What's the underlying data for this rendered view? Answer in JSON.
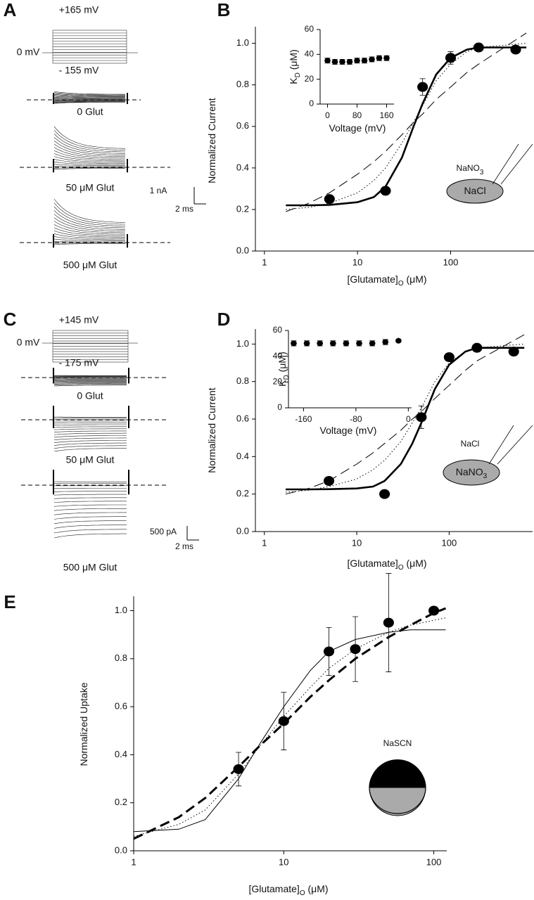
{
  "panel_labels": [
    "A",
    "B",
    "C",
    "D",
    "E"
  ],
  "trace_panels": [
    {
      "top_voltage": "+165 mV",
      "zero": "0 mV",
      "bottom_voltage": "- 155 mV",
      "conditions": [
        "0 Glut",
        "50 μM Glut",
        "500 μM Glut"
      ],
      "scale_y": "1 nA",
      "scale_x": "2 ms"
    },
    {
      "top_voltage": "+145 mV",
      "zero": "0 mV",
      "bottom_voltage": "- 175 mV",
      "conditions": [
        "0 Glut",
        "50 μM Glut",
        "500 μM Glut"
      ],
      "scale_y": "500 pA",
      "scale_x": "2 ms"
    }
  ],
  "chart_data": [
    {
      "type": "scatter",
      "xscale": "log",
      "xlim": [
        0.8,
        800
      ],
      "xticks": [
        1,
        10,
        100
      ],
      "ylim": [
        0,
        1.08
      ],
      "yticks": [
        {
          "value": 0,
          "label": "0.0"
        },
        0.2,
        0.4,
        0.6,
        0.8,
        {
          "value": 1,
          "label": "1.0"
        }
      ],
      "xlabel": [
        "[Glutamate]",
        "O",
        " (μM)"
      ],
      "ylabel": [
        "Normalized Current"
      ],
      "series": [
        {
          "type": "line",
          "style": "solid",
          "width": 2.6,
          "color": "#000",
          "x": [
            1.7,
            3,
            5,
            10,
            15,
            20,
            30,
            40,
            50,
            70,
            100,
            150,
            200,
            650
          ],
          "values": [
            0.22,
            0.22,
            0.222,
            0.235,
            0.26,
            0.31,
            0.45,
            0.6,
            0.71,
            0.85,
            0.93,
            0.97,
            0.98,
            0.98
          ]
        },
        {
          "type": "line",
          "style": "dashed",
          "width": 1,
          "color": "#000",
          "x": [
            1.7,
            3,
            5,
            10,
            15,
            20,
            30,
            40,
            50,
            70,
            100,
            150,
            200,
            650
          ],
          "values": [
            0.19,
            0.23,
            0.28,
            0.37,
            0.43,
            0.48,
            0.56,
            0.62,
            0.66,
            0.73,
            0.79,
            0.86,
            0.9,
            1.05
          ]
        },
        {
          "type": "line",
          "style": "dotted",
          "width": 1,
          "color": "#000",
          "x": [
            1.7,
            3,
            5,
            10,
            15,
            20,
            30,
            40,
            50,
            70,
            100,
            150,
            200,
            650
          ],
          "values": [
            0.2,
            0.21,
            0.23,
            0.28,
            0.34,
            0.4,
            0.52,
            0.62,
            0.7,
            0.82,
            0.9,
            0.96,
            0.98,
            1.0
          ]
        },
        {
          "type": "scatter",
          "color": "#000",
          "x": [
            5,
            20,
            50,
            100,
            200,
            500
          ],
          "values": [
            0.25,
            0.29,
            0.79,
            0.93,
            0.98,
            0.97
          ],
          "error": [
            0.02,
            0.02,
            0.04,
            0.03,
            0.01,
            0.01
          ]
        }
      ],
      "annotation": {
        "outer": [
          "NaNO",
          "3"
        ],
        "inner": [
          "NaCl"
        ]
      }
    },
    {
      "type": "scatter",
      "xlim": [
        -20,
        180
      ],
      "xticks": [
        0,
        80,
        160
      ],
      "ylim": [
        0,
        60
      ],
      "yticks": [
        0,
        20,
        40,
        60
      ],
      "xlabel": [
        "Voltage (mV)"
      ],
      "ylabel": [
        "K",
        "D",
        " (μM)"
      ],
      "series": [
        {
          "type": "scatter",
          "color": "#000",
          "x": [
            0,
            20,
            40,
            60,
            80,
            100,
            120,
            140,
            160
          ],
          "values": [
            35,
            34,
            34,
            34,
            35,
            35,
            36,
            37,
            37
          ],
          "error": [
            2,
            2,
            2,
            2,
            2,
            2,
            2,
            2,
            2
          ]
        }
      ]
    },
    {
      "type": "scatter",
      "xscale": "log",
      "xlim": [
        0.8,
        800
      ],
      "xticks": [
        1,
        10,
        100
      ],
      "ylim": [
        0,
        1.08
      ],
      "yticks": [
        {
          "value": 0,
          "label": "0.0"
        },
        0.2,
        0.4,
        0.6,
        0.8,
        {
          "value": 1,
          "label": "1.0"
        }
      ],
      "xlabel": [
        "[Glutamate]",
        "O",
        " (μM)"
      ],
      "ylabel": [
        "Normalized Current"
      ],
      "series": [
        {
          "type": "line",
          "style": "solid",
          "width": 2.6,
          "color": "#000",
          "x": [
            1.7,
            3,
            5,
            10,
            15,
            20,
            30,
            40,
            50,
            70,
            100,
            150,
            200,
            650
          ],
          "values": [
            0.225,
            0.225,
            0.226,
            0.23,
            0.24,
            0.27,
            0.36,
            0.47,
            0.58,
            0.76,
            0.89,
            0.96,
            0.98,
            0.98
          ]
        },
        {
          "type": "line",
          "style": "dashed",
          "width": 1,
          "color": "#000",
          "x": [
            1.7,
            3,
            5,
            10,
            15,
            20,
            30,
            40,
            50,
            70,
            100,
            150,
            200,
            650
          ],
          "values": [
            0.2,
            0.23,
            0.27,
            0.36,
            0.42,
            0.47,
            0.54,
            0.6,
            0.64,
            0.71,
            0.78,
            0.86,
            0.91,
            1.05
          ]
        },
        {
          "type": "line",
          "style": "dotted",
          "width": 1,
          "color": "#000",
          "x": [
            1.7,
            3,
            5,
            10,
            15,
            20,
            30,
            40,
            50,
            70,
            100,
            150,
            200,
            650
          ],
          "values": [
            0.21,
            0.22,
            0.24,
            0.28,
            0.33,
            0.38,
            0.48,
            0.58,
            0.66,
            0.8,
            0.9,
            0.96,
            0.98,
            1.0
          ]
        },
        {
          "type": "scatter",
          "color": "#000",
          "x": [
            5,
            20,
            50,
            100,
            200,
            500
          ],
          "values": [
            0.27,
            0.2,
            0.61,
            0.93,
            0.98,
            0.96
          ],
          "error": [
            0.01,
            0.01,
            0.06,
            0.01,
            0.01,
            0.01
          ]
        }
      ],
      "annotation": {
        "outer": [
          "NaCl"
        ],
        "inner": [
          "NaNO",
          "3"
        ]
      }
    },
    {
      "type": "scatter",
      "xlim": [
        -183,
        5
      ],
      "xticks": [
        -160,
        -80,
        0
      ],
      "ylim": [
        0,
        60
      ],
      "yticks": [
        0,
        20,
        40,
        60
      ],
      "xlabel": [
        "Voltage (mV)"
      ],
      "ylabel": [
        "K",
        "D",
        " (μM)"
      ],
      "series": [
        {
          "type": "scatter",
          "color": "#000",
          "x": [
            -175,
            -155,
            -135,
            -115,
            -95,
            -75,
            -55,
            -35,
            -15
          ],
          "values": [
            50,
            50,
            50,
            50,
            50,
            50,
            50,
            51,
            52
          ],
          "error": [
            2,
            2,
            2,
            2,
            2,
            2,
            2,
            2,
            1
          ]
        }
      ]
    },
    {
      "type": "scatter",
      "xscale": "log",
      "xlim": [
        1,
        122
      ],
      "xticks": [
        1,
        10,
        100
      ],
      "ylim": [
        0,
        1.06
      ],
      "yticks": [
        {
          "value": 0,
          "label": "0.0"
        },
        0.2,
        0.4,
        0.6,
        0.8,
        {
          "value": 1,
          "label": "1.0"
        }
      ],
      "xlabel": [
        "[Glutamate]",
        "O",
        " (μM)"
      ],
      "ylabel": [
        "Normalized Uptake"
      ],
      "series": [
        {
          "type": "line",
          "style": "solid",
          "width": 1,
          "color": "#000",
          "x": [
            1,
            2,
            3,
            5,
            7,
            10,
            15,
            20,
            30,
            50,
            70,
            100,
            120
          ],
          "values": [
            0.08,
            0.09,
            0.13,
            0.3,
            0.45,
            0.6,
            0.75,
            0.83,
            0.88,
            0.91,
            0.92,
            0.92,
            0.92
          ]
        },
        {
          "type": "line",
          "style": "dashed",
          "width": 3,
          "color": "#000",
          "x": [
            1,
            2,
            3,
            5,
            7,
            10,
            15,
            20,
            30,
            50,
            70,
            100,
            120
          ],
          "values": [
            0.05,
            0.14,
            0.22,
            0.35,
            0.44,
            0.53,
            0.64,
            0.71,
            0.8,
            0.89,
            0.94,
            0.99,
            1.01
          ]
        },
        {
          "type": "line",
          "style": "dotted",
          "width": 1,
          "color": "#000",
          "x": [
            1,
            2,
            3,
            5,
            7,
            10,
            15,
            20,
            30,
            50,
            70,
            100,
            120
          ],
          "values": [
            0.06,
            0.11,
            0.17,
            0.32,
            0.44,
            0.56,
            0.68,
            0.76,
            0.84,
            0.91,
            0.94,
            0.96,
            0.97
          ]
        },
        {
          "type": "scatter",
          "color": "#000",
          "x": [
            5,
            10,
            20,
            30,
            50,
            100
          ],
          "values": [
            0.34,
            0.54,
            0.83,
            0.84,
            0.95,
            1.0
          ],
          "error": [
            0.07,
            0.12,
            0.1,
            0.135,
            0.205,
            0
          ]
        }
      ],
      "annotation": {
        "outer": [
          "NaSCN"
        ]
      }
    }
  ]
}
